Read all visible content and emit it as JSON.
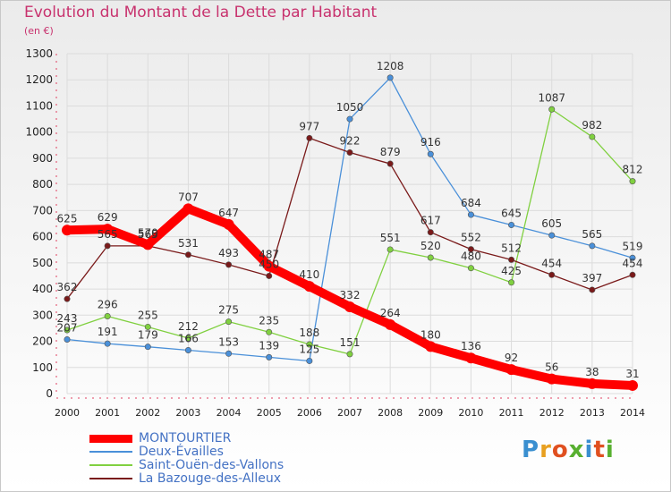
{
  "title": "Evolution du Montant de la Dette par Habitant",
  "subtitle": "(en €)",
  "logo": "Proxiti",
  "chart_data": {
    "type": "line",
    "title": "Evolution du Montant de la Dette par Habitant",
    "ylabel": "(en €)",
    "x": [
      "2000",
      "2001",
      "2002",
      "2003",
      "2004",
      "2005",
      "2006",
      "2007",
      "2008",
      "2009",
      "2010",
      "2011",
      "2012",
      "2013",
      "2014"
    ],
    "ylim": [
      0,
      1300
    ],
    "yticks": [
      0,
      100,
      200,
      300,
      400,
      500,
      600,
      700,
      800,
      900,
      1000,
      1100,
      1200,
      1300
    ],
    "grid": true,
    "legend_position": "bottom-left",
    "series": [
      {
        "name": "MONTOURTIER",
        "color": "#ff0000",
        "values": [
          625,
          629,
          570,
          707,
          647,
          487,
          410,
          332,
          264,
          180,
          136,
          92,
          56,
          38,
          31
        ],
        "segments": [
          [
            0,
            14
          ]
        ]
      },
      {
        "name": "Deux-Évailles",
        "color": "#4a90d9",
        "values": [
          207,
          191,
          179,
          166,
          153,
          139,
          125,
          1050,
          1208,
          916,
          684,
          645,
          605,
          565,
          519
        ],
        "segments": [
          [
            0,
            6
          ],
          [
            6,
            14
          ]
        ]
      },
      {
        "name": "Saint-Ouën-des-Vallons",
        "color": "#80d040",
        "values": [
          243,
          296,
          255,
          212,
          275,
          235,
          188,
          151,
          551,
          520,
          480,
          425,
          1087,
          982,
          812
        ],
        "segments": [
          [
            0,
            7
          ],
          [
            7,
            14
          ]
        ]
      },
      {
        "name": "La Bazouge-des-Alleux",
        "color": "#7a1a1a",
        "values": [
          362,
          565,
          565,
          531,
          493,
          450,
          977,
          922,
          879,
          617,
          552,
          512,
          454,
          397,
          454
        ],
        "segments": [
          [
            0,
            14
          ]
        ]
      }
    ]
  }
}
